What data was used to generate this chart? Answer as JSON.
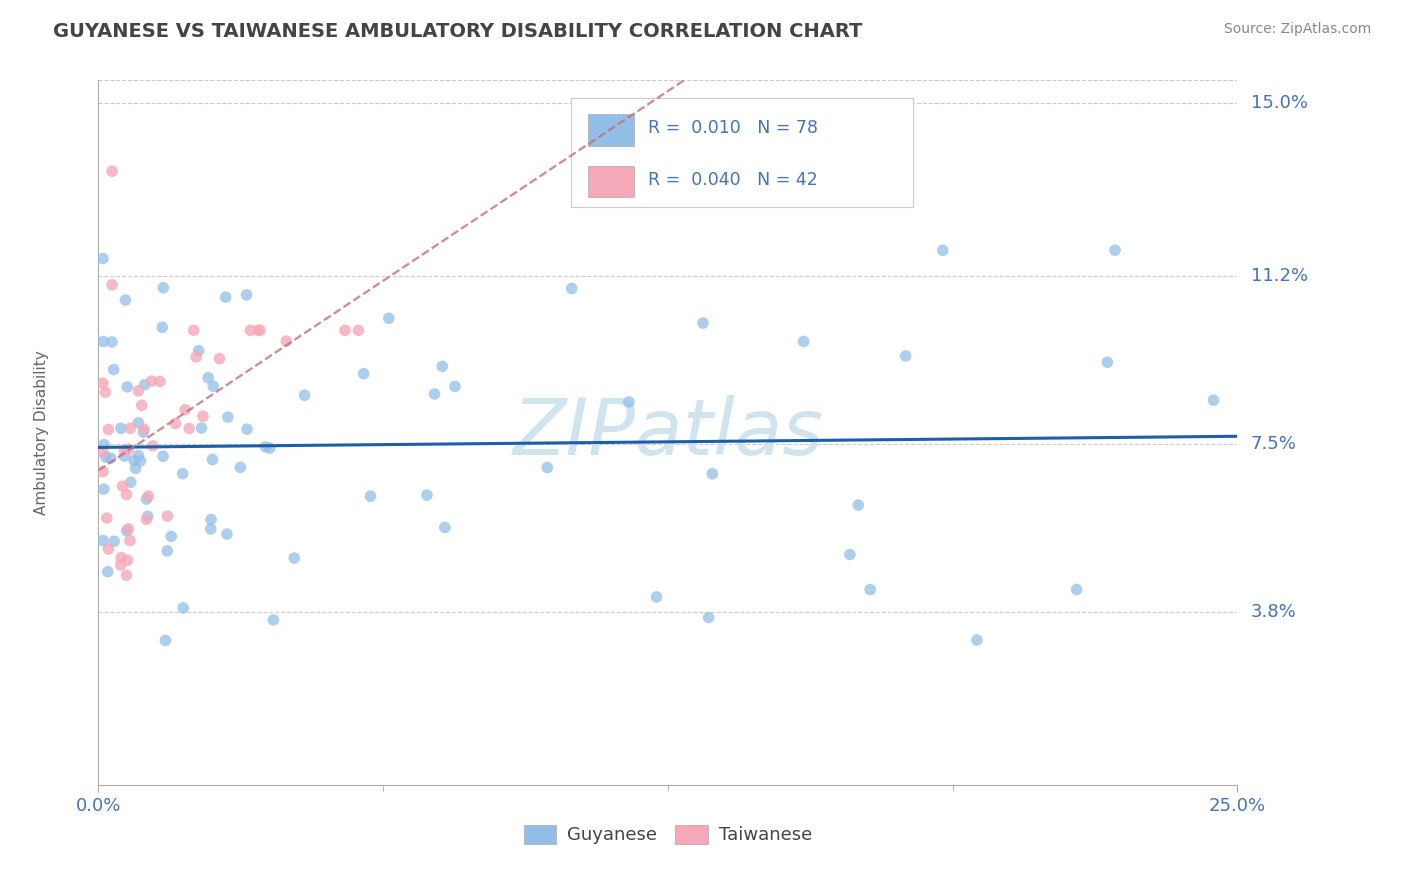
{
  "title": "GUYANESE VS TAIWANESE AMBULATORY DISABILITY CORRELATION CHART",
  "source": "Source: ZipAtlas.com",
  "ylabel": "Ambulatory Disability",
  "xlim": [
    0.0,
    0.25
  ],
  "ylim": [
    0.0,
    0.155
  ],
  "ytick_positions": [
    0.038,
    0.075,
    0.112,
    0.15
  ],
  "ytick_labels": [
    "3.8%",
    "7.5%",
    "11.2%",
    "15.0%"
  ],
  "xtick_positions": [
    0.0,
    0.25
  ],
  "xtick_labels": [
    "0.0%",
    "25.0%"
  ],
  "guyanese_N": 78,
  "taiwanese_N": 42,
  "blue_scatter": "#92bfe8",
  "blue_line": "#1a5fa8",
  "pink_scatter": "#f5a8b8",
  "pink_line": "#c86878",
  "axis_color": "#4472c4",
  "title_color": "#444444",
  "source_color": "#888888",
  "grid_color": "#cccccc",
  "watermark_color": "#d0e4f0",
  "background": "#ffffff",
  "legend_blue_label": "R =  0.010   N = 78",
  "legend_pink_label": "R =  0.040   N = 42",
  "bottom_legend": [
    "Guyanese",
    "Taiwanese"
  ]
}
